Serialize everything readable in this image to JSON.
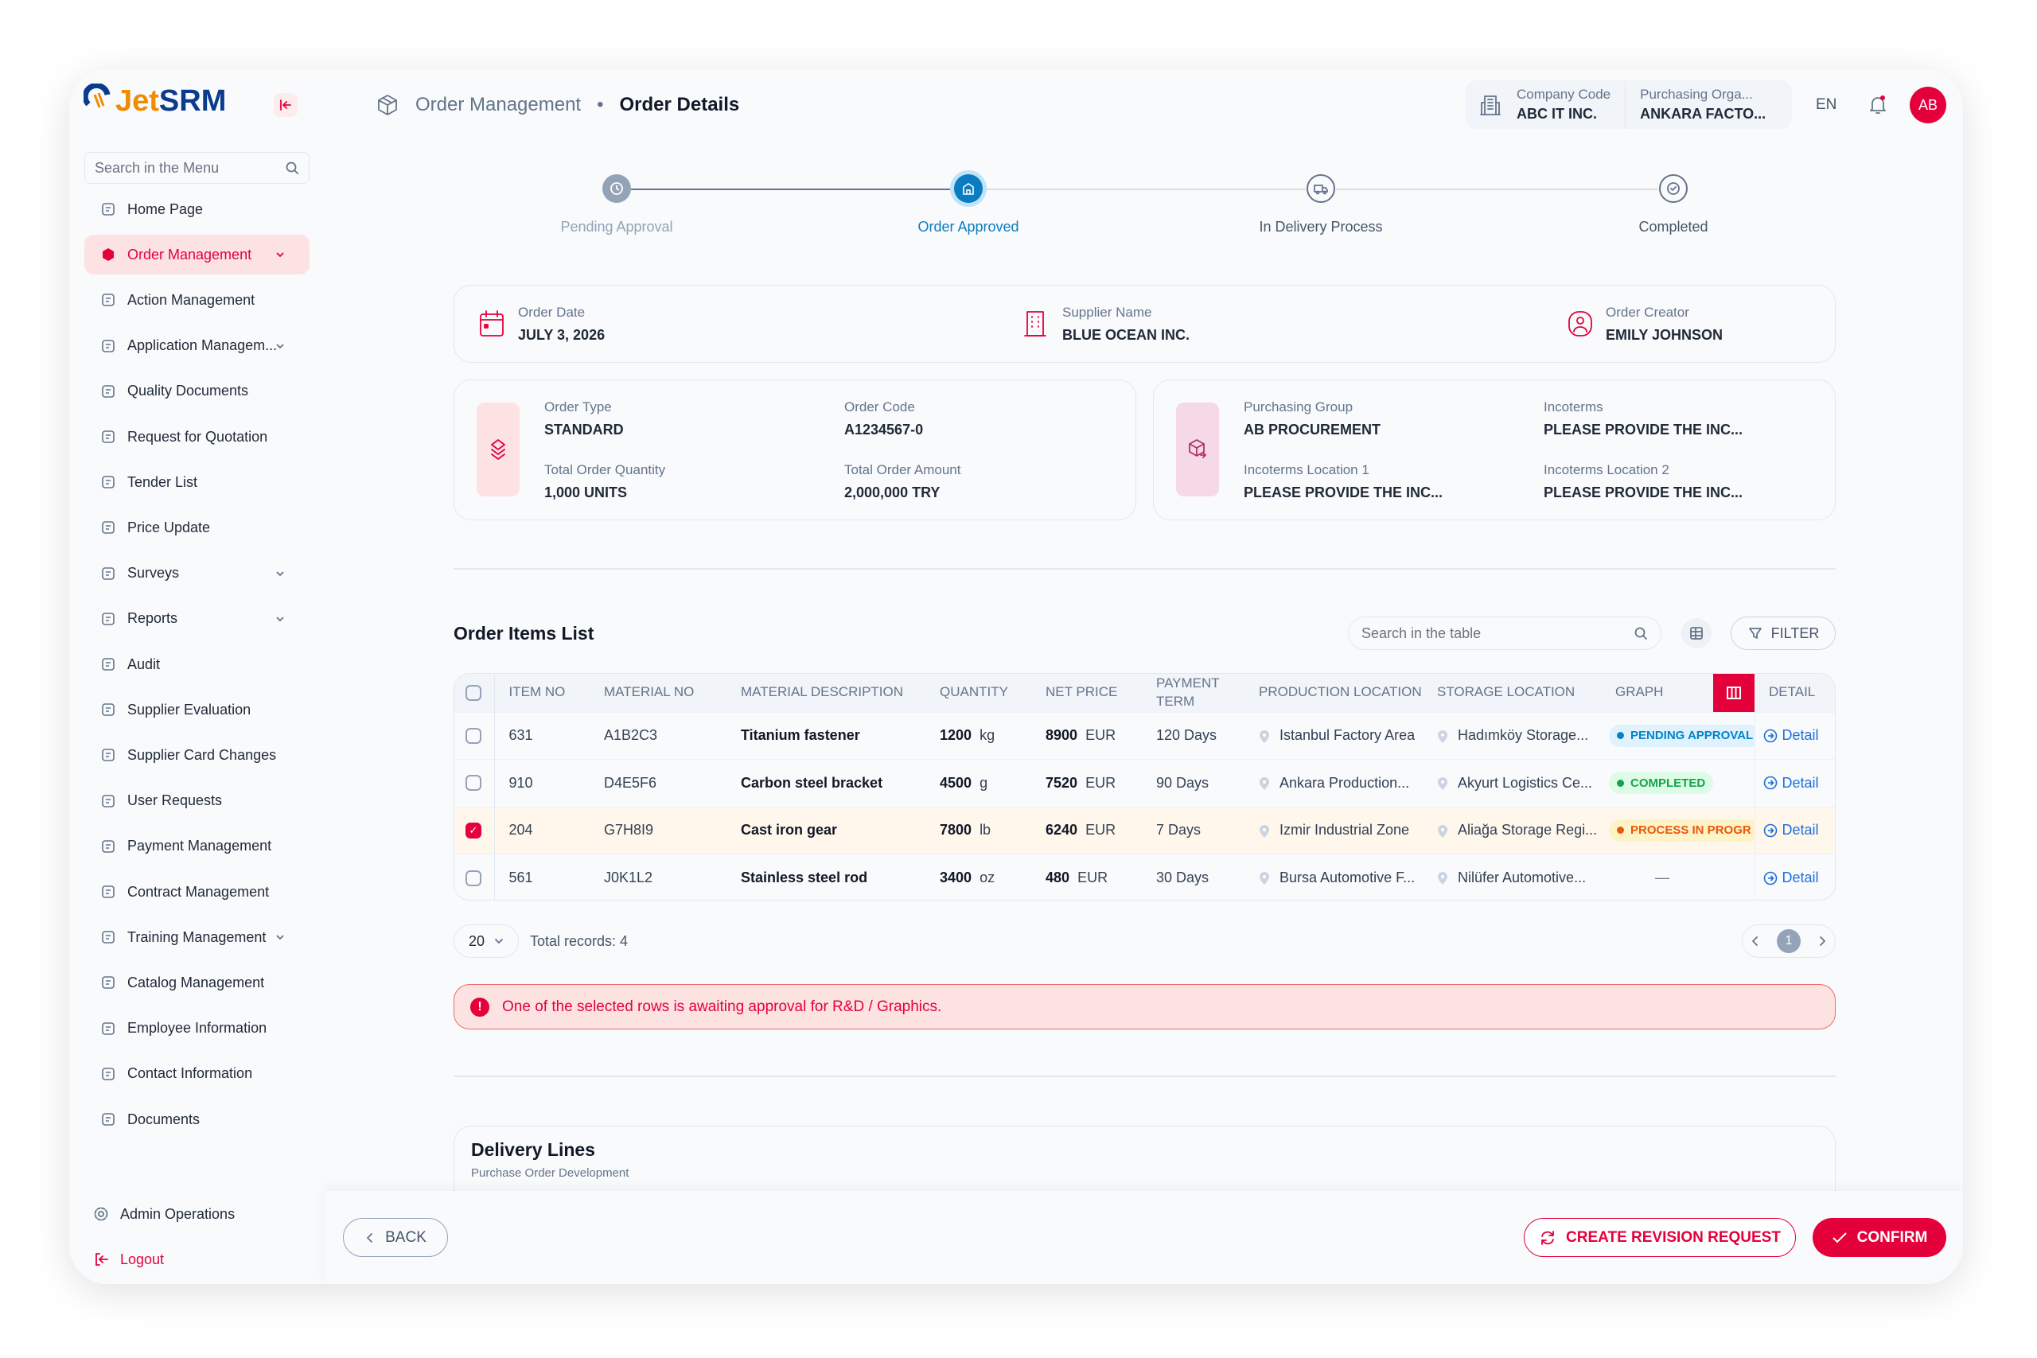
{
  "app": {
    "logo_text_1": "Jet",
    "logo_text_2": "SRM"
  },
  "sidebar": {
    "search_placeholder": "Search in the Menu",
    "items": [
      {
        "label": "Home Page",
        "icon": "home-icon"
      },
      {
        "label": "Order Management",
        "icon": "box-icon",
        "active": true,
        "expandable": true
      },
      {
        "label": "Action Management",
        "icon": "lightning-icon"
      },
      {
        "label": "Application Managem...",
        "icon": "jar-icon",
        "expandable": true
      },
      {
        "label": "Quality Documents",
        "icon": "folder-icon"
      },
      {
        "label": "Request for Quotation",
        "icon": "chart-icon"
      },
      {
        "label": "Tender List",
        "icon": "trend-icon"
      },
      {
        "label": "Price Update",
        "icon": "edit-icon"
      },
      {
        "label": "Surveys",
        "icon": "survey-icon",
        "expandable": true
      },
      {
        "label": "Reports",
        "icon": "clipboard-icon",
        "expandable": true
      },
      {
        "label": "Audit",
        "icon": "calendar-icon"
      },
      {
        "label": "Supplier Evaluation",
        "icon": "badge-icon"
      },
      {
        "label": "Supplier Card Changes",
        "icon": "card-icon"
      },
      {
        "label": "User Requests",
        "icon": "users-icon"
      },
      {
        "label": "Payment Management",
        "icon": "payment-icon"
      },
      {
        "label": "Contract Management",
        "icon": "contract-icon"
      },
      {
        "label": "Training Management",
        "icon": "book-icon",
        "expandable": true
      },
      {
        "label": "Catalog Management",
        "icon": "layers-icon"
      },
      {
        "label": "Employee Information",
        "icon": "id-icon"
      },
      {
        "label": "Contact Information",
        "icon": "contact-icon"
      },
      {
        "label": "Documents",
        "icon": "document-icon"
      }
    ],
    "admin": "Admin Operations",
    "logout": "Logout"
  },
  "header": {
    "breadcrumb": [
      "Order Management",
      "Order Details"
    ],
    "company_code_label": "Company Code",
    "company_code": "ABC IT INC.",
    "purch_org_label": "Purchasing Orga...",
    "purch_org": "ANKARA FACTO...",
    "language": "EN",
    "avatar": "AB"
  },
  "stepper": {
    "current": 1,
    "steps": [
      "Pending Approval",
      "Order Approved",
      "In Delivery Process",
      "Completed"
    ]
  },
  "summary": {
    "order_date_label": "Order Date",
    "order_date": "JULY 3, 2026",
    "supplier_label": "Supplier Name",
    "supplier": "BLUE OCEAN INC.",
    "creator_label": "Order Creator",
    "creator": "EMILY JOHNSON"
  },
  "order_card": {
    "order_type_label": "Order Type",
    "order_type": "STANDARD",
    "order_code_label": "Order Code",
    "order_code": "A1234567-0",
    "qty_label": "Total Order Quantity",
    "qty": "1,000 UNITS",
    "amount_label": "Total Order Amount",
    "amount": "2,000,000 TRY"
  },
  "purchase_card": {
    "group_label": "Purchasing Group",
    "group": "AB PROCUREMENT",
    "incoterms_label": "Incoterms",
    "incoterms": "PLEASE PROVIDE THE INC...",
    "loc1_label": "Incoterms Location 1",
    "loc1": "PLEASE PROVIDE THE INC...",
    "loc2_label": "Incoterms Location 2",
    "loc2": "PLEASE PROVIDE THE INC..."
  },
  "items": {
    "title": "Order Items List",
    "search_placeholder": "Search in the table",
    "filter_label": "FILTER",
    "columns": [
      "ITEM NO",
      "MATERIAL NO",
      "MATERIAL DESCRIPTION",
      "QUANTITY",
      "NET PRICE",
      "PAYMENT TERM",
      "PRODUCTION LOCATION",
      "STORAGE LOCATION",
      "GRAPH",
      "DETAIL"
    ],
    "rows": [
      {
        "item": "631",
        "material": "A1B2C3",
        "desc": "Titanium fastener",
        "qty": "1200",
        "unit": "kg",
        "price": "8900",
        "cur": "EUR",
        "term": "120 Days",
        "prod": "Istanbul Factory Area",
        "storage": "Hadımköy Storage...",
        "status": "PENDING APPROVAL",
        "detail": "Detail",
        "checked": false
      },
      {
        "item": "910",
        "material": "D4E5F6",
        "desc": "Carbon steel bracket",
        "qty": "4500",
        "unit": "g",
        "price": "7520",
        "cur": "EUR",
        "term": "90 Days",
        "prod": "Ankara Production...",
        "storage": "Akyurt Logistics Ce...",
        "status": "COMPLETED",
        "detail": "Detail",
        "checked": false
      },
      {
        "item": "204",
        "material": "G7H8I9",
        "desc": "Cast iron gear",
        "qty": "7800",
        "unit": "lb",
        "price": "6240",
        "cur": "EUR",
        "term": "7 Days",
        "prod": "Izmir Industrial Zone",
        "storage": "Aliağa Storage Regi...",
        "status": "PROCESS IN PROGR",
        "detail": "Detail",
        "checked": true
      },
      {
        "item": "561",
        "material": "J0K1L2",
        "desc": "Stainless steel rod",
        "qty": "3400",
        "unit": "oz",
        "price": "480",
        "cur": "EUR",
        "term": "30 Days",
        "prod": "Bursa Automotive F...",
        "storage": "Nilüfer Automotive...",
        "status": "—",
        "detail": "Detail",
        "checked": false
      }
    ],
    "page_size": "20",
    "total_records": "Total records: 4",
    "current_page": "1"
  },
  "status_colors": {
    "PENDING APPROVAL": [
      "#e0f2fe",
      "#0284c7"
    ],
    "COMPLETED": [
      "#dcfce7",
      "#16a34a"
    ],
    "PROCESS IN PROGR": [
      "#fef3c7",
      "#ea580c"
    ]
  },
  "alert": "One of the selected rows is awaiting approval for R&D / Graphics.",
  "delivery": {
    "title": "Delivery Lines",
    "subtitle": "Purchase Order Development"
  },
  "footer": {
    "back": "BACK",
    "revision": "CREATE REVISION REQUEST",
    "confirm": "CONFIRM"
  },
  "colors": {
    "accent": "#e4003b",
    "primary_blue": "#0a7cc1"
  }
}
